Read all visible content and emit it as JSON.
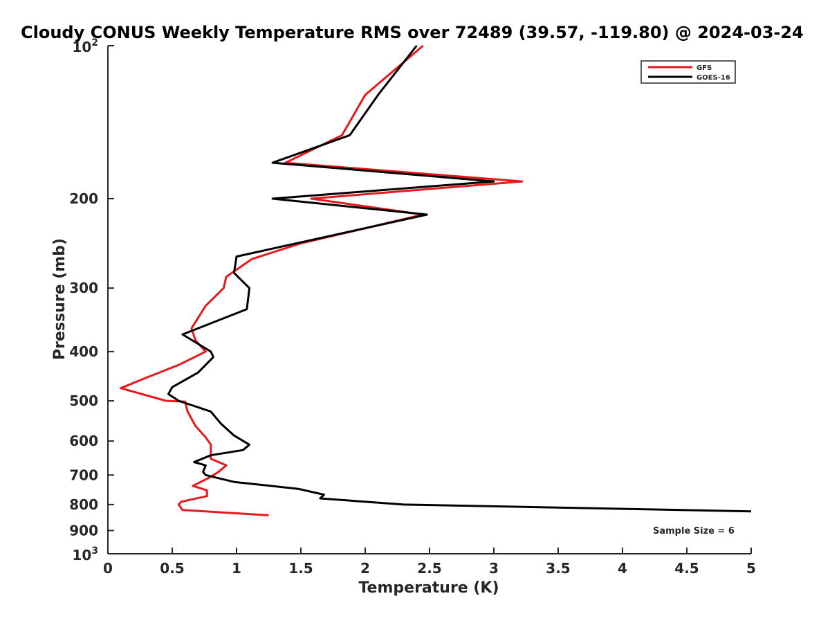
{
  "chart_data": {
    "type": "line",
    "title": "Cloudy CONUS Weekly Temperature RMS over 72489 (39.57, -119.80) @ 2024-03-24",
    "xlabel": "Temperature (K)",
    "ylabel": "Pressure (mb)",
    "xlim": [
      0,
      5
    ],
    "ylim": [
      100,
      1000
    ],
    "y_scale": "log",
    "y_reversed": true,
    "grid": false,
    "legend_position": "top-right",
    "x_ticks": [
      {
        "value": 0,
        "label": "0"
      },
      {
        "value": 0.5,
        "label": "0.5"
      },
      {
        "value": 1,
        "label": "1"
      },
      {
        "value": 1.5,
        "label": "1.5"
      },
      {
        "value": 2,
        "label": "2"
      },
      {
        "value": 2.5,
        "label": "2.5"
      },
      {
        "value": 3,
        "label": "3"
      },
      {
        "value": 3.5,
        "label": "3.5"
      },
      {
        "value": 4,
        "label": "4"
      },
      {
        "value": 4.5,
        "label": "4.5"
      },
      {
        "value": 5,
        "label": "5"
      }
    ],
    "y_ticks": [
      {
        "value": 100,
        "base": "10",
        "exp": "2"
      },
      {
        "value": 200,
        "label": "200"
      },
      {
        "value": 300,
        "label": "300"
      },
      {
        "value": 400,
        "label": "400"
      },
      {
        "value": 500,
        "label": "500"
      },
      {
        "value": 600,
        "label": "600"
      },
      {
        "value": 700,
        "label": "700"
      },
      {
        "value": 800,
        "label": "800"
      },
      {
        "value": 900,
        "label": "900"
      },
      {
        "value": 1000,
        "base": "10",
        "exp": "3"
      }
    ],
    "annotation": "Sample Size = 6",
    "series": [
      {
        "name": "GFS",
        "color": "#e41a1c",
        "points": [
          [
            2.45,
            100
          ],
          [
            2.0,
            125
          ],
          [
            1.82,
            150
          ],
          [
            1.38,
            170
          ],
          [
            3.22,
            185
          ],
          [
            1.58,
            200
          ],
          [
            2.45,
            215
          ],
          [
            1.5,
            245
          ],
          [
            1.12,
            263
          ],
          [
            0.92,
            285
          ],
          [
            0.9,
            300
          ],
          [
            0.76,
            325
          ],
          [
            0.65,
            360
          ],
          [
            0.68,
            380
          ],
          [
            0.76,
            400
          ],
          [
            0.55,
            425
          ],
          [
            0.3,
            450
          ],
          [
            0.1,
            472
          ],
          [
            0.45,
            500
          ],
          [
            0.6,
            502
          ],
          [
            0.62,
            525
          ],
          [
            0.68,
            560
          ],
          [
            0.76,
            590
          ],
          [
            0.8,
            610
          ],
          [
            0.8,
            650
          ],
          [
            0.92,
            670
          ],
          [
            0.86,
            690
          ],
          [
            0.78,
            710
          ],
          [
            0.66,
            735
          ],
          [
            0.77,
            750
          ],
          [
            0.77,
            770
          ],
          [
            0.57,
            790
          ],
          [
            0.55,
            800
          ],
          [
            0.58,
            820
          ],
          [
            1.25,
            840
          ]
        ]
      },
      {
        "name": "GOES-16",
        "color": "#000000",
        "points": [
          [
            2.4,
            100
          ],
          [
            2.1,
            125
          ],
          [
            1.88,
            150
          ],
          [
            1.28,
            170
          ],
          [
            3.0,
            185
          ],
          [
            1.28,
            200
          ],
          [
            2.48,
            215
          ],
          [
            1.0,
            260
          ],
          [
            0.98,
            280
          ],
          [
            1.1,
            300
          ],
          [
            1.08,
            330
          ],
          [
            0.58,
            370
          ],
          [
            0.8,
            400
          ],
          [
            0.82,
            410
          ],
          [
            0.7,
            440
          ],
          [
            0.5,
            470
          ],
          [
            0.47,
            485
          ],
          [
            0.55,
            500
          ],
          [
            0.8,
            525
          ],
          [
            0.88,
            555
          ],
          [
            0.98,
            585
          ],
          [
            1.1,
            610
          ],
          [
            1.05,
            625
          ],
          [
            0.8,
            640
          ],
          [
            0.67,
            660
          ],
          [
            0.76,
            670
          ],
          [
            0.74,
            690
          ],
          [
            0.76,
            700
          ],
          [
            0.98,
            722
          ],
          [
            1.48,
            745
          ],
          [
            1.68,
            765
          ],
          [
            1.65,
            778
          ],
          [
            2.3,
            800
          ],
          [
            5.0,
            825
          ]
        ]
      }
    ]
  }
}
